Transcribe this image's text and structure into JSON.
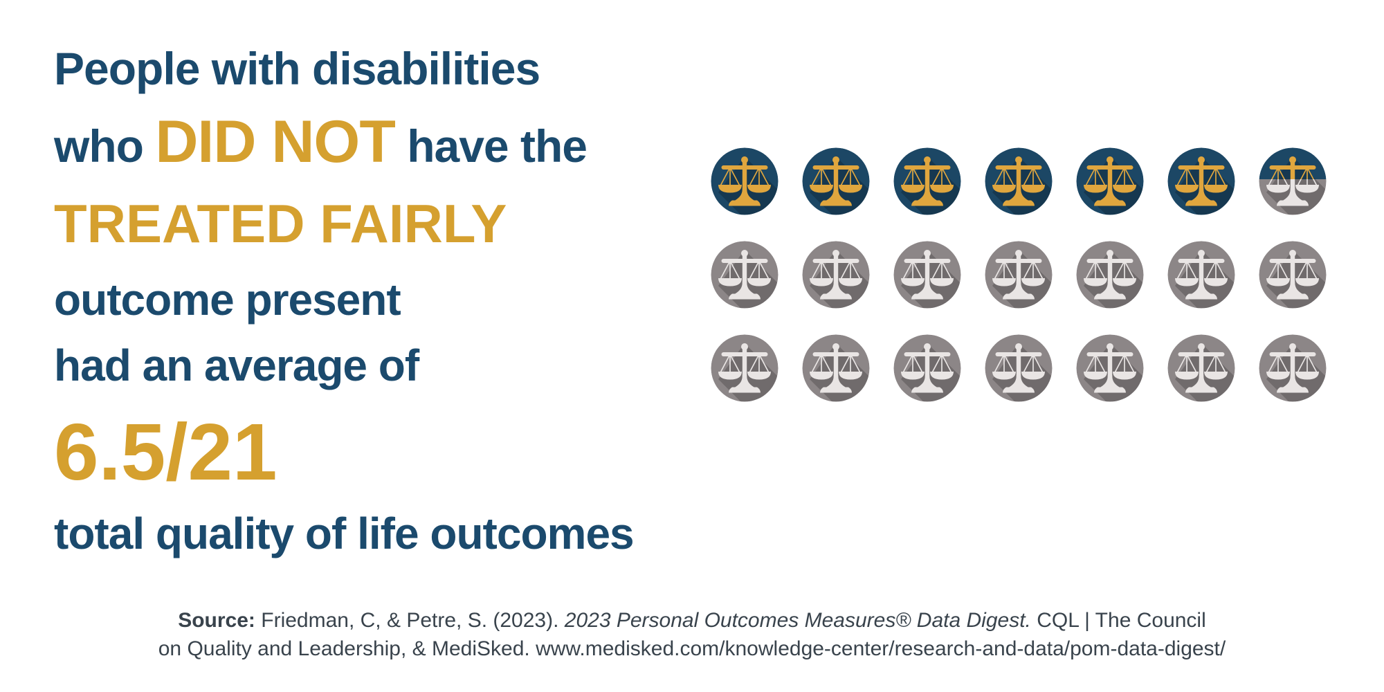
{
  "headline": {
    "line1": "People with disabilities",
    "line2_pre": "who ",
    "line2_emphasis": "DID NOT",
    "line2_post": " have the",
    "line3_emphasis": "TREATED FAIRLY",
    "line4": "outcome present",
    "line5": "had an average of",
    "stat_value": "6.5/21",
    "line7": "total quality of life outcomes"
  },
  "source": {
    "label": "Source:",
    "citation_part1": " Friedman, C, & Petre, S. (2023). ",
    "citation_italic": "2023 Personal Outcomes Measures® Data Digest.",
    "citation_part2": " CQL | The Council",
    "line2": "on Quality and Leadership, & MediSked. www.medisked.com/knowledge-center/research-and-data/pom-data-digest/"
  },
  "colors": {
    "headline_navy": "#1B4A6D",
    "headline_gold": "#D5A02F",
    "source_gray": "#39434C"
  },
  "chart_data": {
    "type": "pictograph",
    "title": "People with disabilities who DID NOT have the TREATED FAIRLY outcome present had an average of 6.5/21 total quality of life outcomes",
    "icon": "scales-of-justice",
    "value": 6.5,
    "total": 21,
    "rows": 3,
    "columns": 7,
    "filled_icons": 6,
    "half_icons": 1,
    "empty_icons": 14,
    "filled_circle_color": "#1C4765",
    "filled_scales_color": "#E0A63E",
    "empty_circle_color": "#8C8687",
    "empty_scales_color": "#E9E5E4",
    "shadow_opacity": 0.2,
    "legend_position": "none",
    "grid": false
  }
}
